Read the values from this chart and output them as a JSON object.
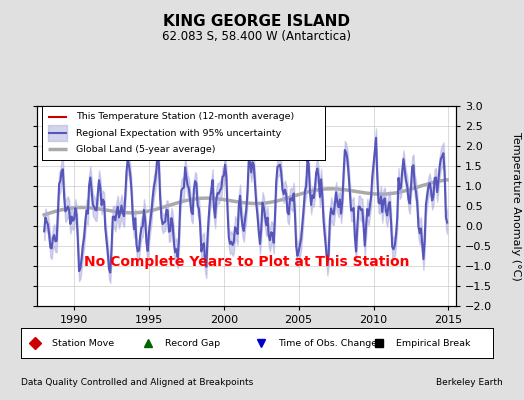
{
  "title": "KING GEORGE ISLAND",
  "subtitle": "62.083 S, 58.400 W (Antarctica)",
  "ylabel": "Temperature Anomaly (°C)",
  "xlabel_note": "Data Quality Controlled and Aligned at Breakpoints",
  "credit": "Berkeley Earth",
  "no_data_text": "No Complete Years to Plot at This Station",
  "xlim": [
    1987.5,
    2015.5
  ],
  "ylim": [
    -2.0,
    3.0
  ],
  "yticks": [
    -2,
    -1.5,
    -1,
    -0.5,
    0,
    0.5,
    1,
    1.5,
    2,
    2.5,
    3
  ],
  "xticks": [
    1990,
    1995,
    2000,
    2005,
    2010,
    2015
  ],
  "bg_color": "#e0e0e0",
  "plot_bg_color": "#ffffff",
  "regional_color": "#5555bb",
  "regional_fill_color": "#aaaadd",
  "regional_fill_alpha": 0.5,
  "global_land_color": "#aaaaaa",
  "station_color": "#cc0000",
  "legend_items": [
    {
      "label": "This Temperature Station (12-month average)",
      "color": "#cc0000",
      "lw": 1.5
    },
    {
      "label": "Regional Expectation with 95% uncertainty",
      "color": "#5555bb",
      "lw": 1.5
    },
    {
      "label": "Global Land (5-year average)",
      "color": "#aaaaaa",
      "lw": 2.5
    }
  ],
  "bottom_legend": [
    {
      "label": "Station Move",
      "color": "#cc0000",
      "marker": "D"
    },
    {
      "label": "Record Gap",
      "color": "#006600",
      "marker": "^"
    },
    {
      "label": "Time of Obs. Change",
      "color": "#0000cc",
      "marker": "v"
    },
    {
      "label": "Empirical Break",
      "color": "#000000",
      "marker": "s"
    }
  ]
}
